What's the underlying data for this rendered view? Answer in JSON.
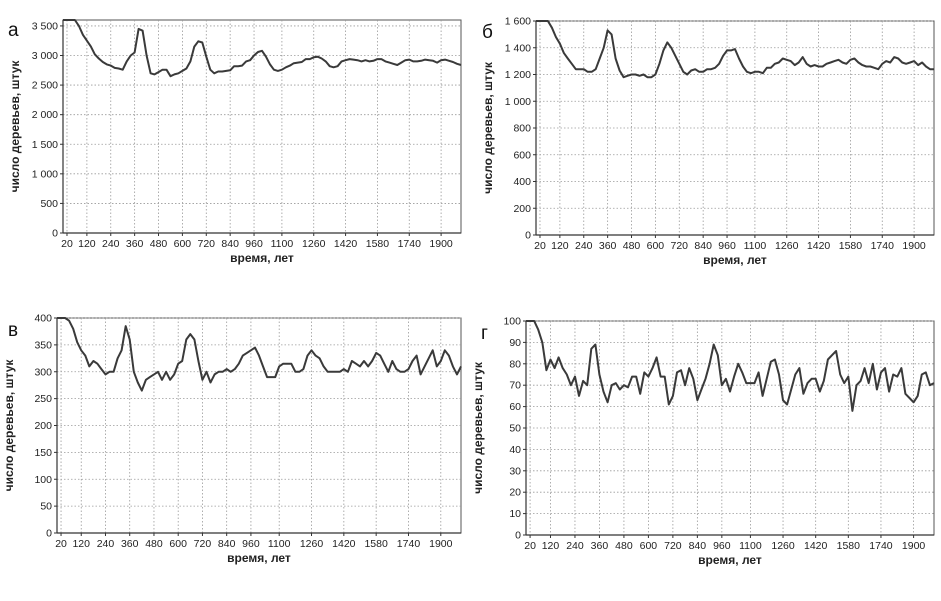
{
  "chart_data": [
    {
      "type": "line",
      "panel_label": "а",
      "xlabel": "время, лет",
      "ylabel": "число деревьев, штук",
      "xlim": [
        0,
        2000
      ],
      "ylim": [
        0,
        3600
      ],
      "x_ticks": [
        20,
        120,
        240,
        360,
        480,
        600,
        720,
        840,
        960,
        1100,
        1260,
        1420,
        1580,
        1740,
        1900
      ],
      "x_tick_labels": [
        "20",
        "120",
        "240",
        "360",
        "480",
        "600",
        "720",
        "840",
        "960",
        "1100",
        "1260",
        "1420",
        "1580",
        "1740",
        "1900"
      ],
      "y_ticks": [
        0,
        500,
        1000,
        1500,
        2000,
        2500,
        3000,
        3500
      ],
      "y_tick_labels": [
        "0",
        "500",
        "1 000",
        "1 500",
        "2 000",
        "2 500",
        "3 000",
        "3 500"
      ],
      "grid": true,
      "x": [
        0,
        20,
        40,
        60,
        80,
        100,
        120,
        140,
        160,
        180,
        200,
        220,
        240,
        260,
        280,
        300,
        320,
        340,
        360,
        380,
        400,
        420,
        440,
        460,
        480,
        500,
        520,
        540,
        560,
        580,
        600,
        620,
        640,
        660,
        680,
        700,
        720,
        740,
        760,
        780,
        800,
        820,
        840,
        860,
        880,
        900,
        920,
        940,
        960,
        980,
        1000,
        1020,
        1040,
        1060,
        1080,
        1100,
        1120,
        1140,
        1160,
        1180,
        1200,
        1220,
        1240,
        1260,
        1280,
        1300,
        1320,
        1340,
        1360,
        1380,
        1400,
        1420,
        1440,
        1460,
        1480,
        1500,
        1520,
        1540,
        1560,
        1580,
        1600,
        1620,
        1640,
        1660,
        1680,
        1700,
        1720,
        1740,
        1760,
        1780,
        1800,
        1820,
        1840,
        1860,
        1880,
        1900,
        1920,
        1940,
        1960,
        1980,
        2000
      ],
      "y": [
        3600,
        3600,
        3600,
        3600,
        3500,
        3350,
        3250,
        3150,
        3020,
        2950,
        2890,
        2850,
        2830,
        2790,
        2780,
        2760,
        2900,
        3000,
        3050,
        3450,
        3420,
        3000,
        2700,
        2680,
        2720,
        2760,
        2760,
        2650,
        2680,
        2700,
        2740,
        2780,
        2900,
        3150,
        3240,
        3220,
        2980,
        2760,
        2700,
        2730,
        2730,
        2740,
        2750,
        2820,
        2820,
        2830,
        2900,
        2920,
        3000,
        3060,
        3080,
        2980,
        2850,
        2760,
        2740,
        2760,
        2800,
        2830,
        2870,
        2880,
        2890,
        2940,
        2940,
        2970,
        2980,
        2950,
        2900,
        2820,
        2800,
        2820,
        2900,
        2920,
        2940,
        2930,
        2920,
        2900,
        2920,
        2900,
        2910,
        2940,
        2940,
        2900,
        2880,
        2860,
        2840,
        2880,
        2920,
        2930,
        2900,
        2900,
        2910,
        2930,
        2920,
        2910,
        2880,
        2920,
        2930,
        2910,
        2890,
        2860,
        2840
      ]
    },
    {
      "type": "line",
      "panel_label": "б",
      "xlabel": "время, лет",
      "ylabel": "число деревьев, штук",
      "xlim": [
        0,
        2000
      ],
      "ylim": [
        0,
        1600
      ],
      "x_ticks": [
        20,
        120,
        240,
        360,
        480,
        600,
        720,
        840,
        960,
        1100,
        1260,
        1420,
        1580,
        1740,
        1900
      ],
      "x_tick_labels": [
        "20",
        "120",
        "240",
        "360",
        "480",
        "600",
        "720",
        "840",
        "960",
        "1100",
        "1260",
        "1420",
        "1580",
        "1740",
        "1900"
      ],
      "y_ticks": [
        0,
        200,
        400,
        600,
        800,
        1000,
        1200,
        1400,
        1600
      ],
      "y_tick_labels": [
        "0",
        "200",
        "400",
        "600",
        "800",
        "1 000",
        "1 200",
        "1 400",
        "1 600"
      ],
      "grid": true,
      "x": [
        0,
        20,
        40,
        60,
        80,
        100,
        120,
        140,
        160,
        180,
        200,
        220,
        240,
        260,
        280,
        300,
        320,
        340,
        360,
        380,
        400,
        420,
        440,
        460,
        480,
        500,
        520,
        540,
        560,
        580,
        600,
        620,
        640,
        660,
        680,
        700,
        720,
        740,
        760,
        780,
        800,
        820,
        840,
        860,
        880,
        900,
        920,
        940,
        960,
        980,
        1000,
        1020,
        1040,
        1060,
        1080,
        1100,
        1120,
        1140,
        1160,
        1180,
        1200,
        1220,
        1240,
        1260,
        1280,
        1300,
        1320,
        1340,
        1360,
        1380,
        1400,
        1420,
        1440,
        1460,
        1480,
        1500,
        1520,
        1540,
        1560,
        1580,
        1600,
        1620,
        1640,
        1660,
        1680,
        1700,
        1720,
        1740,
        1760,
        1780,
        1800,
        1820,
        1840,
        1860,
        1880,
        1900,
        1920,
        1940,
        1960,
        1980,
        2000
      ],
      "y": [
        1600,
        1600,
        1600,
        1600,
        1550,
        1480,
        1430,
        1360,
        1320,
        1280,
        1240,
        1240,
        1240,
        1220,
        1220,
        1240,
        1320,
        1400,
        1530,
        1500,
        1320,
        1230,
        1180,
        1190,
        1200,
        1200,
        1190,
        1200,
        1180,
        1180,
        1200,
        1280,
        1380,
        1440,
        1400,
        1340,
        1280,
        1220,
        1200,
        1230,
        1240,
        1220,
        1220,
        1240,
        1240,
        1250,
        1280,
        1340,
        1380,
        1380,
        1390,
        1320,
        1260,
        1220,
        1210,
        1220,
        1220,
        1210,
        1250,
        1250,
        1280,
        1290,
        1320,
        1310,
        1300,
        1270,
        1290,
        1330,
        1280,
        1260,
        1270,
        1260,
        1260,
        1280,
        1290,
        1300,
        1310,
        1290,
        1280,
        1310,
        1320,
        1290,
        1270,
        1260,
        1260,
        1250,
        1240,
        1280,
        1300,
        1290,
        1330,
        1320,
        1290,
        1280,
        1290,
        1300,
        1270,
        1290,
        1260,
        1240,
        1240
      ]
    },
    {
      "type": "line",
      "panel_label": "в",
      "xlabel": "время, лет",
      "ylabel": "число деревьев, штук",
      "xlim": [
        0,
        2000
      ],
      "ylim": [
        0,
        400
      ],
      "x_ticks": [
        20,
        120,
        240,
        360,
        480,
        600,
        720,
        840,
        960,
        1100,
        1260,
        1420,
        1580,
        1740,
        1900
      ],
      "x_tick_labels": [
        "20",
        "120",
        "240",
        "360",
        "480",
        "600",
        "720",
        "840",
        "960",
        "1100",
        "1260",
        "1420",
        "1580",
        "1740",
        "1900"
      ],
      "y_ticks": [
        0,
        50,
        100,
        150,
        200,
        250,
        300,
        350,
        400
      ],
      "y_tick_labels": [
        "0",
        "50",
        "100",
        "150",
        "200",
        "250",
        "300",
        "350",
        "400"
      ],
      "grid": true,
      "x": [
        0,
        20,
        40,
        60,
        80,
        100,
        120,
        140,
        160,
        180,
        200,
        220,
        240,
        260,
        280,
        300,
        320,
        340,
        360,
        380,
        400,
        420,
        440,
        460,
        480,
        500,
        520,
        540,
        560,
        580,
        600,
        620,
        640,
        660,
        680,
        700,
        720,
        740,
        760,
        780,
        800,
        820,
        840,
        860,
        880,
        900,
        920,
        940,
        960,
        980,
        1000,
        1020,
        1040,
        1060,
        1080,
        1100,
        1120,
        1140,
        1160,
        1180,
        1200,
        1220,
        1240,
        1260,
        1280,
        1300,
        1320,
        1340,
        1360,
        1380,
        1400,
        1420,
        1440,
        1460,
        1480,
        1500,
        1520,
        1540,
        1560,
        1580,
        1600,
        1620,
        1640,
        1660,
        1680,
        1700,
        1720,
        1740,
        1760,
        1780,
        1800,
        1820,
        1840,
        1860,
        1880,
        1900,
        1920,
        1940,
        1960,
        1980,
        2000
      ],
      "y": [
        400,
        400,
        400,
        395,
        380,
        355,
        340,
        330,
        310,
        320,
        315,
        305,
        295,
        300,
        300,
        325,
        340,
        385,
        360,
        300,
        280,
        265,
        285,
        290,
        295,
        300,
        285,
        300,
        285,
        295,
        315,
        320,
        360,
        370,
        360,
        320,
        285,
        300,
        280,
        295,
        300,
        300,
        305,
        300,
        305,
        315,
        330,
        335,
        340,
        345,
        330,
        310,
        290,
        290,
        290,
        310,
        315,
        315,
        315,
        300,
        300,
        305,
        330,
        340,
        330,
        325,
        310,
        300,
        300,
        300,
        300,
        305,
        300,
        320,
        315,
        310,
        320,
        310,
        320,
        335,
        330,
        315,
        300,
        320,
        305,
        300,
        300,
        305,
        320,
        330,
        295,
        310,
        325,
        340,
        310,
        320,
        340,
        330,
        310,
        295,
        310
      ]
    },
    {
      "type": "line",
      "panel_label": "г",
      "xlabel": "время, лет",
      "ylabel": "число деревьев, штук",
      "xlim": [
        0,
        2000
      ],
      "ylim": [
        0,
        100
      ],
      "x_ticks": [
        20,
        120,
        240,
        360,
        480,
        600,
        720,
        840,
        960,
        1100,
        1260,
        1420,
        1580,
        1740,
        1900
      ],
      "x_tick_labels": [
        "20",
        "120",
        "240",
        "360",
        "480",
        "600",
        "720",
        "840",
        "960",
        "1100",
        "1260",
        "1420",
        "1580",
        "1740",
        "1900"
      ],
      "y_ticks": [
        0,
        10,
        20,
        30,
        40,
        50,
        60,
        70,
        80,
        90,
        100
      ],
      "y_tick_labels": [
        "0",
        "10",
        "20",
        "30",
        "40",
        "50",
        "60",
        "70",
        "80",
        "90",
        "100"
      ],
      "grid": true,
      "x": [
        0,
        20,
        40,
        60,
        80,
        100,
        120,
        140,
        160,
        180,
        200,
        220,
        240,
        260,
        280,
        300,
        320,
        340,
        360,
        380,
        400,
        420,
        440,
        460,
        480,
        500,
        520,
        540,
        560,
        580,
        600,
        620,
        640,
        660,
        680,
        700,
        720,
        740,
        760,
        780,
        800,
        820,
        840,
        860,
        880,
        900,
        920,
        940,
        960,
        980,
        1000,
        1020,
        1040,
        1060,
        1080,
        1100,
        1120,
        1140,
        1160,
        1180,
        1200,
        1220,
        1240,
        1260,
        1280,
        1300,
        1320,
        1340,
        1360,
        1380,
        1400,
        1420,
        1440,
        1460,
        1480,
        1500,
        1520,
        1540,
        1560,
        1580,
        1600,
        1620,
        1640,
        1660,
        1680,
        1700,
        1720,
        1740,
        1760,
        1780,
        1800,
        1820,
        1840,
        1860,
        1880,
        1900,
        1920,
        1940,
        1960,
        1980,
        2000
      ],
      "y": [
        100,
        100,
        100,
        96,
        90,
        77,
        82,
        78,
        83,
        78,
        75,
        70,
        74,
        65,
        72,
        70,
        87,
        89,
        75,
        67,
        62,
        70,
        71,
        68,
        70,
        69,
        74,
        74,
        66,
        76,
        74,
        78,
        83,
        74,
        74,
        61,
        65,
        76,
        77,
        70,
        78,
        73,
        63,
        68,
        73,
        80,
        89,
        84,
        70,
        73,
        67,
        74,
        80,
        76,
        71,
        71,
        71,
        76,
        65,
        73,
        81,
        82,
        75,
        63,
        61,
        68,
        75,
        78,
        66,
        71,
        73,
        73,
        67,
        72,
        82,
        84,
        86,
        75,
        71,
        74,
        58,
        70,
        72,
        78,
        71,
        80,
        68,
        76,
        78,
        67,
        75,
        74,
        78,
        66,
        64,
        62,
        65,
        75,
        76,
        70,
        71
      ]
    }
  ]
}
